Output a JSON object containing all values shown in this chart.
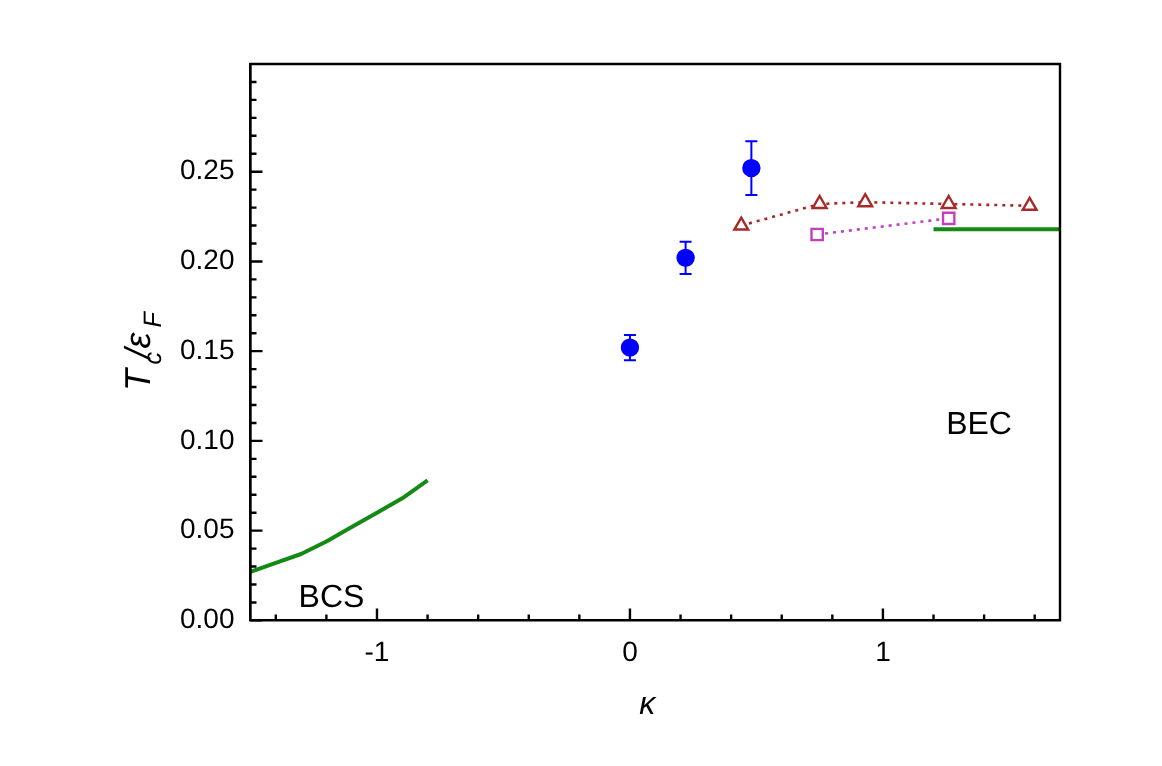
{
  "chart_data": {
    "type": "scatter",
    "xlabel": "κ",
    "ylabel": "T$_{c}$/ε$_{F}$",
    "xlim": [
      -1.5,
      1.7
    ],
    "ylim": [
      0,
      0.31
    ],
    "xticks": [
      {
        "value": -1.4,
        "label": null
      },
      {
        "value": -1.2,
        "label": null
      },
      {
        "value": -1,
        "label": "-1"
      },
      {
        "value": -0.8,
        "label": null
      },
      {
        "value": -0.6,
        "label": null
      },
      {
        "value": -0.4,
        "label": null
      },
      {
        "value": -0.2,
        "label": null
      },
      {
        "value": 0,
        "label": "0"
      },
      {
        "value": 0.2,
        "label": null
      },
      {
        "value": 0.4,
        "label": null
      },
      {
        "value": 0.6,
        "label": null
      },
      {
        "value": 0.8,
        "label": null
      },
      {
        "value": 1,
        "label": "1"
      },
      {
        "value": 1.2,
        "label": null
      },
      {
        "value": 1.4,
        "label": null
      },
      {
        "value": 1.6,
        "label": null
      }
    ],
    "yticks": [
      {
        "value": 0,
        "label": "0.00"
      },
      {
        "value": 0.01,
        "label": null
      },
      {
        "value": 0.02,
        "label": null
      },
      {
        "value": 0.03,
        "label": null
      },
      {
        "value": 0.04,
        "label": null
      },
      {
        "value": 0.05,
        "label": "0.05"
      },
      {
        "value": 0.06,
        "label": null
      },
      {
        "value": 0.07,
        "label": null
      },
      {
        "value": 0.08,
        "label": null
      },
      {
        "value": 0.09,
        "label": null
      },
      {
        "value": 0.1,
        "label": "0.10"
      },
      {
        "value": 0.11,
        "label": null
      },
      {
        "value": 0.12,
        "label": null
      },
      {
        "value": 0.13,
        "label": null
      },
      {
        "value": 0.14,
        "label": null
      },
      {
        "value": 0.15,
        "label": "0.15"
      },
      {
        "value": 0.16,
        "label": null
      },
      {
        "value": 0.17,
        "label": null
      },
      {
        "value": 0.18,
        "label": null
      },
      {
        "value": 0.19,
        "label": null
      },
      {
        "value": 0.2,
        "label": "0.20"
      },
      {
        "value": 0.21,
        "label": null
      },
      {
        "value": 0.22,
        "label": null
      },
      {
        "value": 0.23,
        "label": null
      },
      {
        "value": 0.24,
        "label": null
      },
      {
        "value": 0.25,
        "label": "0.25"
      },
      {
        "value": 0.26,
        "label": null
      },
      {
        "value": 0.27,
        "label": null
      },
      {
        "value": 0.28,
        "label": null
      },
      {
        "value": 0.29,
        "label": null
      },
      {
        "value": 0.3,
        "label": null
      }
    ],
    "grid": false,
    "legend": false,
    "series": [
      {
        "type": "line",
        "color": "#138a13",
        "line_style": "solid",
        "marker": "none",
        "x": [
          -1.5,
          -1.4,
          -1.3,
          -1.2,
          -1.1,
          -1.0,
          -0.9,
          -0.8
        ],
        "values": [
          0.027,
          0.032,
          0.037,
          0.044,
          0.052,
          0.06,
          0.068,
          0.078
        ]
      },
      {
        "type": "line",
        "color": "#138a13",
        "line_style": "solid",
        "marker": "none",
        "x": [
          1.2,
          1.7
        ],
        "values": [
          0.218,
          0.218
        ]
      },
      {
        "type": "scatter",
        "color": "#0000ff",
        "marker": "circle",
        "x": [
          0,
          0.22,
          0.48
        ],
        "values": [
          0.152,
          0.202,
          0.252
        ],
        "errors": [
          0.007,
          0.009,
          0.015
        ]
      },
      {
        "type": "line",
        "color": "#a52a2a",
        "line_style": "dotted",
        "marker": "triangle",
        "x": [
          0.44,
          0.75,
          0.93,
          1.26,
          1.58
        ],
        "values": [
          0.22,
          0.232,
          0.233,
          0.232,
          0.231
        ]
      },
      {
        "type": "line",
        "color": "#c040c0",
        "line_style": "dotted",
        "marker": "square",
        "x": [
          0.74,
          1.26
        ],
        "values": [
          0.215,
          0.224
        ]
      }
    ],
    "annotations": [
      "BCS",
      "BEC"
    ]
  }
}
